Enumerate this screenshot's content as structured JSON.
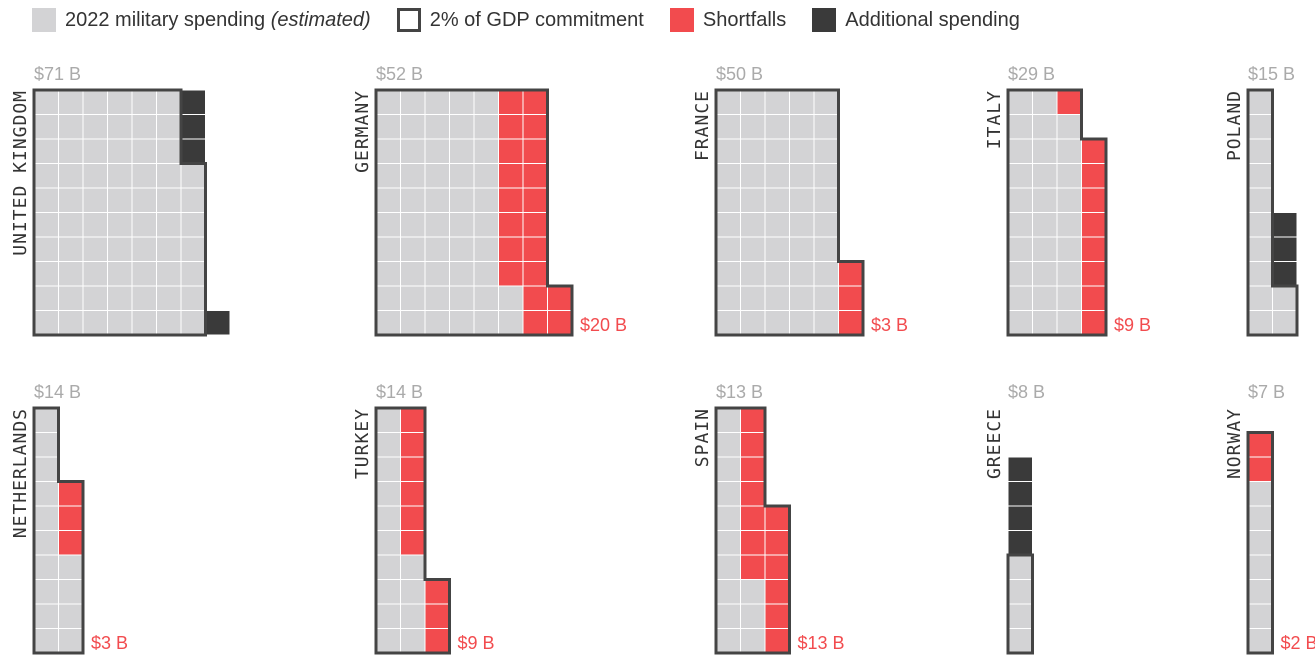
{
  "colors": {
    "spending": "#d3d3d5",
    "shortfall": "#f24b4e",
    "additional": "#3a3a3a",
    "outline": "#444444",
    "cell_line": "#ffffff"
  },
  "legend": {
    "spending_label": "2022 military spending",
    "spending_suffix": "(estimated)",
    "commitment_label": "2% of GDP commitment",
    "shortfall_label": "Shortfalls",
    "additional_label": "Additional spending"
  },
  "chart_data": {
    "type": "waffle",
    "unit": "each square = $1 B",
    "grid_columns_note": "10 squares per row",
    "countries": [
      {
        "name": "UNITED KINGDOM",
        "total_label": "$71 B",
        "spending": 71,
        "commitment": 67,
        "shortfall": 0,
        "shortfall_label": "",
        "additional": 4
      },
      {
        "name": "GERMANY",
        "total_label": "$52 B",
        "spending": 52,
        "commitment": 72,
        "shortfall": 20,
        "shortfall_label": "$20 B",
        "additional": 0
      },
      {
        "name": "FRANCE",
        "total_label": "$50 B",
        "spending": 50,
        "commitment": 53,
        "shortfall": 3,
        "shortfall_label": "$3 B",
        "additional": 0
      },
      {
        "name": "ITALY",
        "total_label": "$29 B",
        "spending": 29,
        "commitment": 38,
        "shortfall": 9,
        "shortfall_label": "$9 B",
        "additional": 0
      },
      {
        "name": "POLAND",
        "total_label": "$15 B",
        "spending": 15,
        "commitment": 12,
        "shortfall": 0,
        "shortfall_label": "",
        "additional": 3
      },
      {
        "name": "NETHERLANDS",
        "total_label": "$14 B",
        "spending": 14,
        "commitment": 17,
        "shortfall": 3,
        "shortfall_label": "$3 B",
        "additional": 0
      },
      {
        "name": "TURKEY",
        "total_label": "$14 B",
        "spending": 14,
        "commitment": 23,
        "shortfall": 9,
        "shortfall_label": "$9 B",
        "additional": 0
      },
      {
        "name": "SPAIN",
        "total_label": "$13 B",
        "spending": 13,
        "commitment": 26,
        "shortfall": 13,
        "shortfall_label": "$13 B",
        "additional": 0
      },
      {
        "name": "GREECE",
        "total_label": "$8 B",
        "spending": 8,
        "commitment": 4,
        "shortfall": 0,
        "shortfall_label": "",
        "additional": 4
      },
      {
        "name": "NORWAY",
        "total_label": "$7 B",
        "spending": 7,
        "commitment": 9,
        "shortfall": 2,
        "shortfall_label": "$2 B",
        "additional": 0
      }
    ]
  }
}
